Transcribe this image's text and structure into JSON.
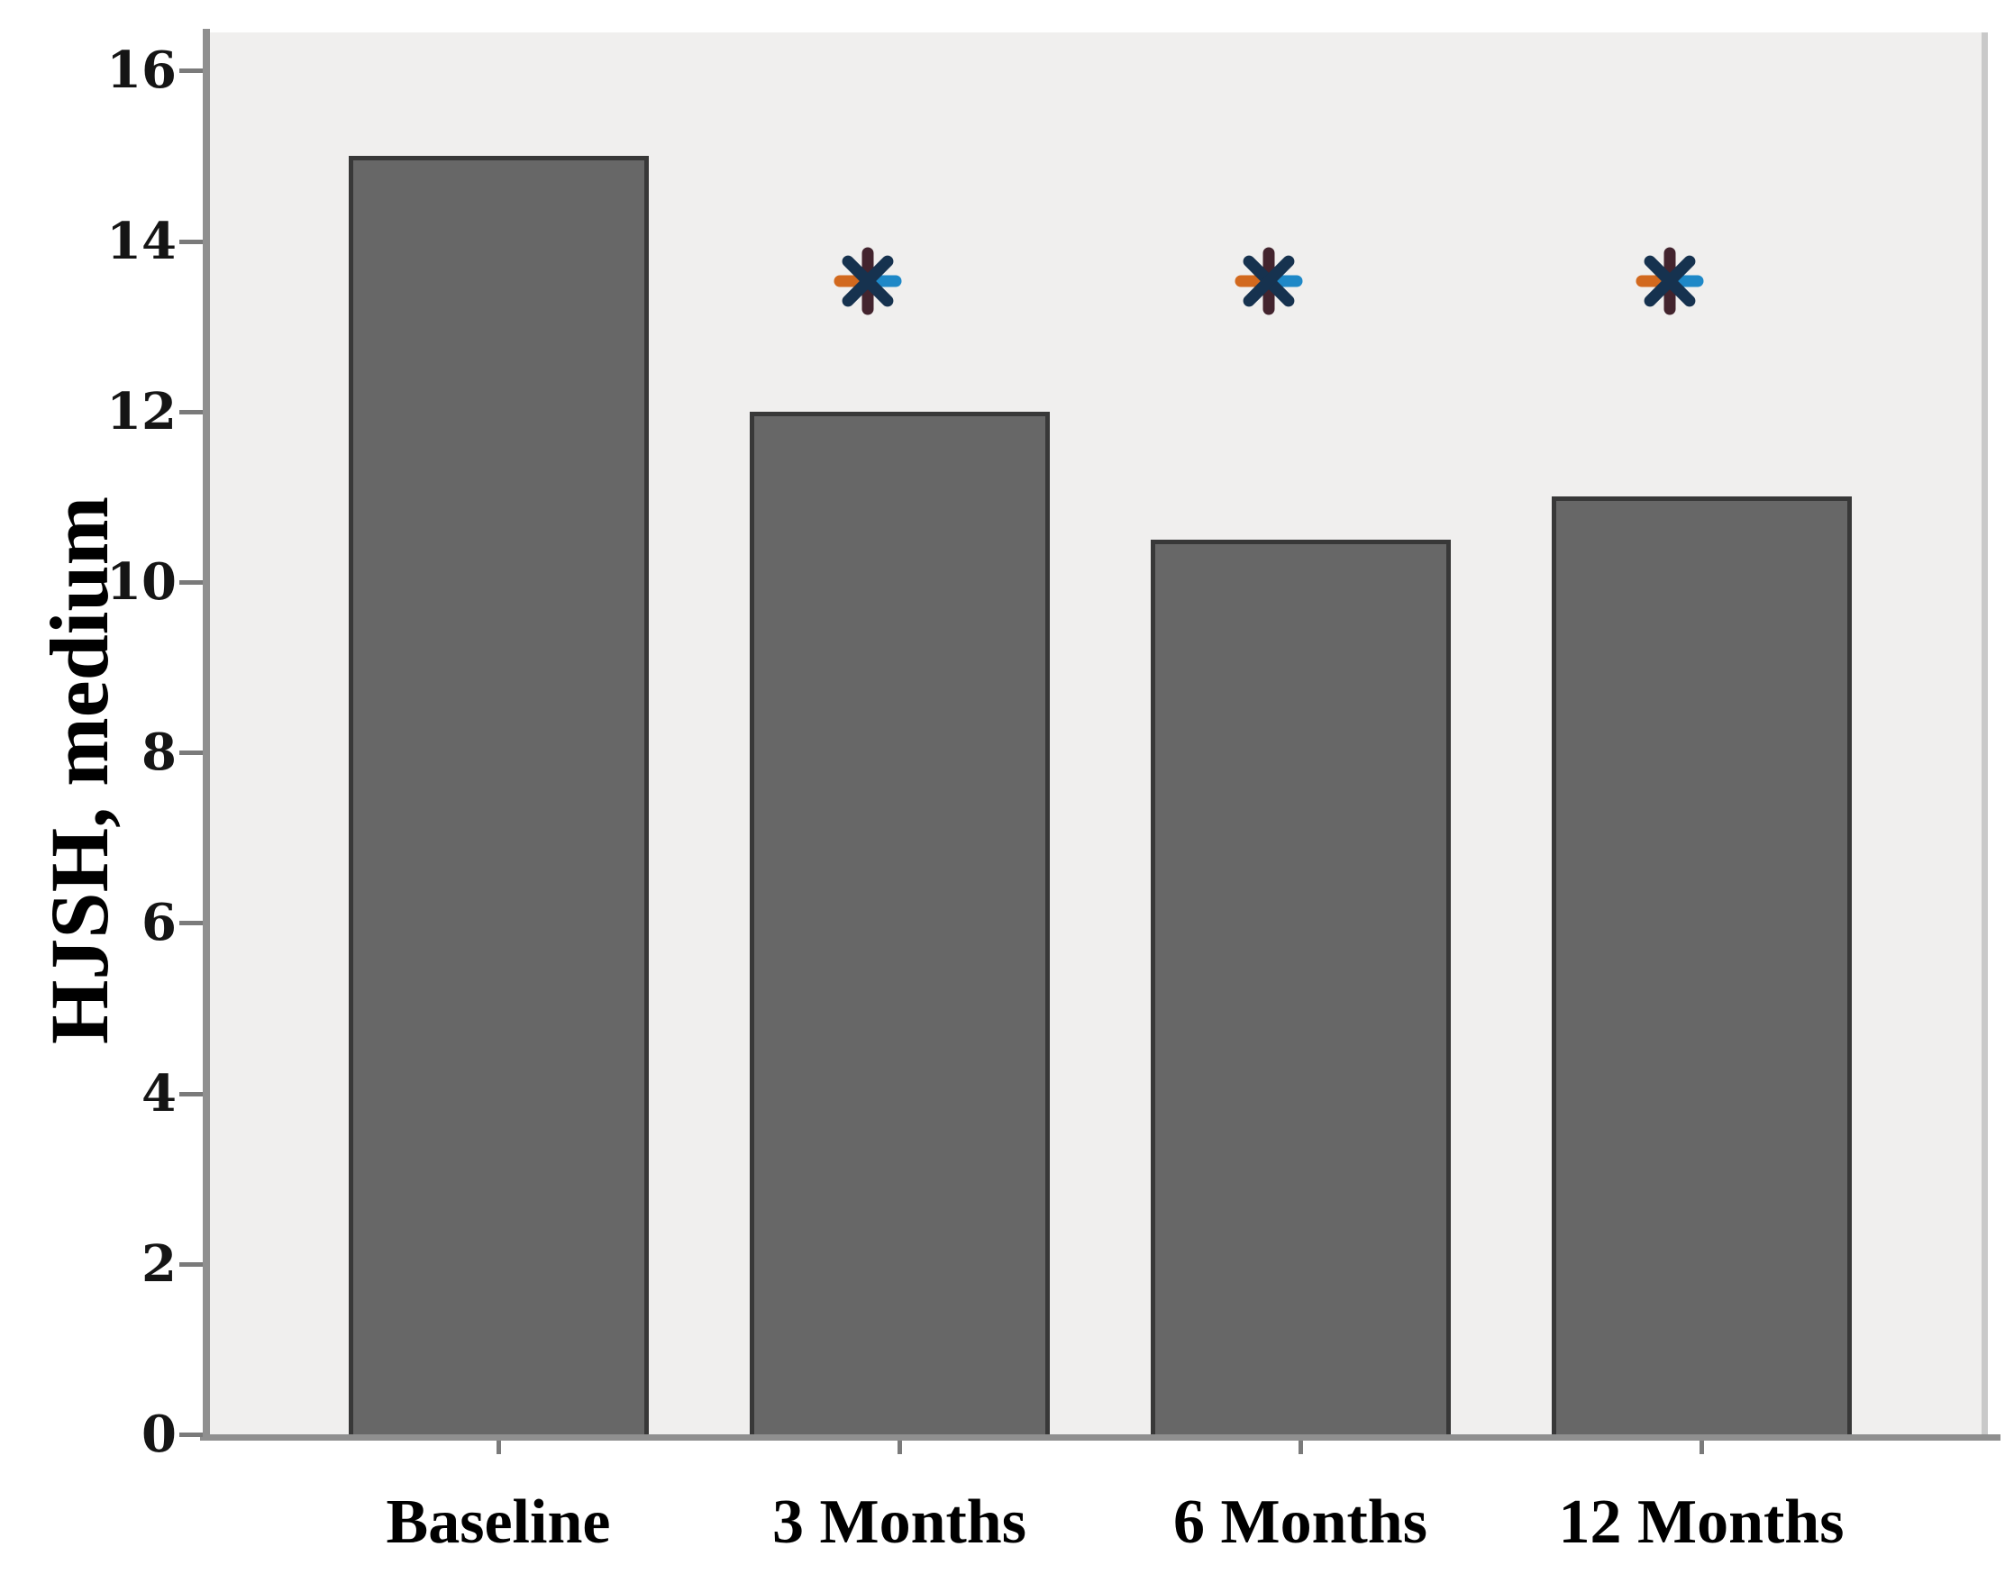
{
  "chart_data": {
    "type": "bar",
    "categories": [
      "Baseline",
      "3 Months",
      "6 Months",
      "12 Months"
    ],
    "values": [
      15,
      12,
      10.5,
      11
    ],
    "significance": [
      false,
      true,
      true,
      true
    ],
    "significance_marker": "*",
    "title": "",
    "xlabel": "",
    "ylabel": "HJSH, medium",
    "ylim": [
      0,
      16
    ],
    "yticks": [
      0,
      2,
      4,
      6,
      8,
      10,
      12,
      14,
      16
    ],
    "grid": false,
    "legend": "none",
    "colors": {
      "bar_fill": "#676767",
      "bar_border": "#383838",
      "plot_background": "#f0efee",
      "axis": "#8f8f8f",
      "tick": "#7a7a7a",
      "marker_diagonal": "#16324f",
      "marker_vertical": "#43242e",
      "marker_left_arm": "#d2691e",
      "marker_right_arm": "#1e88c7"
    }
  }
}
